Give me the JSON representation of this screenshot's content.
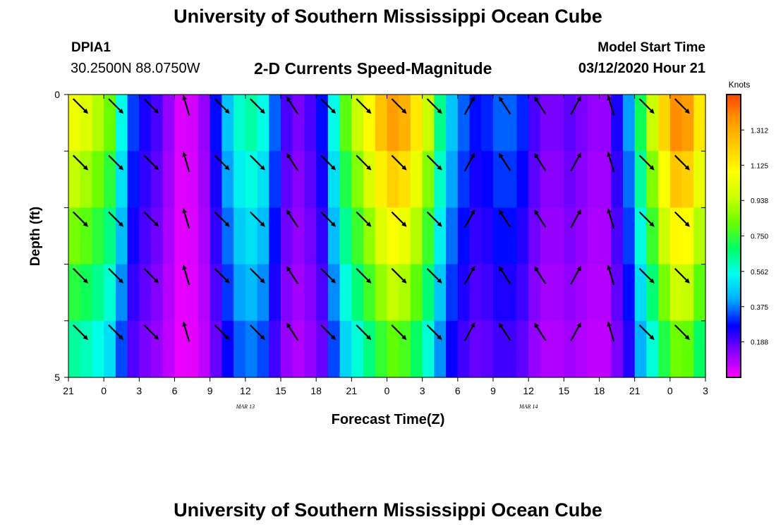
{
  "page": {
    "title_top": "University of Southern Mississippi Ocean Cube",
    "title_bottom": "University of Southern Mississippi Ocean Cube",
    "station_id": "DPIA1",
    "station_coords": "30.2500N 88.0750W",
    "subtitle": "2-D Currents Speed-Magnitude",
    "model_start_label": "Model Start Time",
    "model_start_value": "03/12/2020 Hour 21"
  },
  "colors": {
    "ramp": [
      "#ff00ff",
      "#8800ff",
      "#0000ff",
      "#00aaff",
      "#00ffee",
      "#00ff66",
      "#66ff00",
      "#ccff00",
      "#ffff00",
      "#ffcc00",
      "#ff9900",
      "#ff4400"
    ],
    "arrow": "#000000",
    "axis": "#000000"
  },
  "chart_data": {
    "type": "heatmap",
    "title": "2-D Currents Speed-Magnitude",
    "xlabel": "Forecast Time(Z)",
    "ylabel": "Depth (ft)",
    "x_tick_labels": [
      "21",
      "0",
      "3",
      "6",
      "9",
      "12",
      "15",
      "18",
      "21",
      "0",
      "3",
      "6",
      "9",
      "12",
      "15",
      "18",
      "21",
      "0",
      "3"
    ],
    "date_labels": [
      {
        "text": "MAR 13",
        "tick_index": 5
      },
      {
        "text": "MAR 14",
        "tick_index": 13
      }
    ],
    "y_tick_labels": [
      "0",
      "5"
    ],
    "ylim": [
      0,
      5
    ],
    "depth_layers": 5,
    "colorbar": {
      "unit": "Knots",
      "range": [
        0,
        1.5
      ],
      "tick_values": [
        0.188,
        0.375,
        0.562,
        0.75,
        0.938,
        1.125,
        1.312
      ],
      "tick_labels": [
        "0.188",
        "0.375",
        "0.562",
        "0.750",
        "0.938",
        "1.125",
        "1.312"
      ]
    },
    "speed_profile": [
      {
        "hour": 0,
        "speed": 1.05
      },
      {
        "hour": 1,
        "speed": 1.0
      },
      {
        "hour": 2,
        "speed": 0.92
      },
      {
        "hour": 3,
        "speed": 0.82
      },
      {
        "hour": 4,
        "speed": 0.55
      },
      {
        "hour": 5,
        "speed": 0.32
      },
      {
        "hour": 6,
        "speed": 0.25
      },
      {
        "hour": 7,
        "speed": 0.2
      },
      {
        "hour": 8,
        "speed": 0.12
      },
      {
        "hour": 9,
        "speed": 0.04
      },
      {
        "hour": 10,
        "speed": 0.05
      },
      {
        "hour": 11,
        "speed": 0.12
      },
      {
        "hour": 12,
        "speed": 0.28
      },
      {
        "hour": 13,
        "speed": 0.45
      },
      {
        "hour": 14,
        "speed": 0.58
      },
      {
        "hour": 15,
        "speed": 0.62
      },
      {
        "hour": 16,
        "speed": 0.55
      },
      {
        "hour": 17,
        "speed": 0.35
      },
      {
        "hour": 18,
        "speed": 0.2
      },
      {
        "hour": 19,
        "speed": 0.15
      },
      {
        "hour": 20,
        "speed": 0.2
      },
      {
        "hour": 21,
        "speed": 0.28
      },
      {
        "hour": 22,
        "speed": 0.55
      },
      {
        "hour": 23,
        "speed": 0.8
      },
      {
        "hour": 24,
        "speed": 0.95
      },
      {
        "hour": 25,
        "speed": 1.1
      },
      {
        "hour": 26,
        "speed": 1.25
      },
      {
        "hour": 27,
        "speed": 1.35
      },
      {
        "hour": 28,
        "speed": 1.3
      },
      {
        "hour": 29,
        "speed": 1.15
      },
      {
        "hour": 30,
        "speed": 0.95
      },
      {
        "hour": 31,
        "speed": 0.65
      },
      {
        "hour": 32,
        "speed": 0.45
      },
      {
        "hour": 33,
        "speed": 0.35
      },
      {
        "hour": 34,
        "speed": 0.28
      },
      {
        "hour": 35,
        "speed": 0.3
      },
      {
        "hour": 36,
        "speed": 0.35
      },
      {
        "hour": 37,
        "speed": 0.35
      },
      {
        "hour": 38,
        "speed": 0.3
      },
      {
        "hour": 39,
        "speed": 0.2
      },
      {
        "hour": 40,
        "speed": 0.15
      },
      {
        "hour": 41,
        "speed": 0.15
      },
      {
        "hour": 42,
        "speed": 0.18
      },
      {
        "hour": 43,
        "speed": 0.15
      },
      {
        "hour": 44,
        "speed": 0.12
      },
      {
        "hour": 45,
        "speed": 0.12
      },
      {
        "hour": 46,
        "speed": 0.25
      },
      {
        "hour": 47,
        "speed": 0.4
      },
      {
        "hour": 48,
        "speed": 0.7
      },
      {
        "hour": 49,
        "speed": 0.95
      },
      {
        "hour": 50,
        "speed": 1.2
      },
      {
        "hour": 51,
        "speed": 1.38
      },
      {
        "hour": 52,
        "speed": 1.35
      },
      {
        "hour": 53,
        "speed": 1.15
      },
      {
        "hour": 54,
        "speed": 0.85
      }
    ],
    "depth_factor": [
      1.0,
      0.9,
      0.8,
      0.7,
      0.6
    ],
    "arrows": [
      {
        "hour": 1,
        "dir": "se"
      },
      {
        "hour": 4,
        "dir": "se"
      },
      {
        "hour": 7,
        "dir": "se"
      },
      {
        "hour": 10,
        "dir": "nnw"
      },
      {
        "hour": 13,
        "dir": "se"
      },
      {
        "hour": 16,
        "dir": "se"
      },
      {
        "hour": 19,
        "dir": "nw"
      },
      {
        "hour": 22,
        "dir": "se"
      },
      {
        "hour": 25,
        "dir": "se"
      },
      {
        "hour": 28,
        "dir": "se"
      },
      {
        "hour": 31,
        "dir": "se"
      },
      {
        "hour": 34,
        "dir": "ne"
      },
      {
        "hour": 37,
        "dir": "nw"
      },
      {
        "hour": 40,
        "dir": "nw"
      },
      {
        "hour": 43,
        "dir": "ne"
      },
      {
        "hour": 46,
        "dir": "nnw"
      },
      {
        "hour": 49,
        "dir": "se"
      },
      {
        "hour": 52,
        "dir": "se"
      }
    ]
  }
}
